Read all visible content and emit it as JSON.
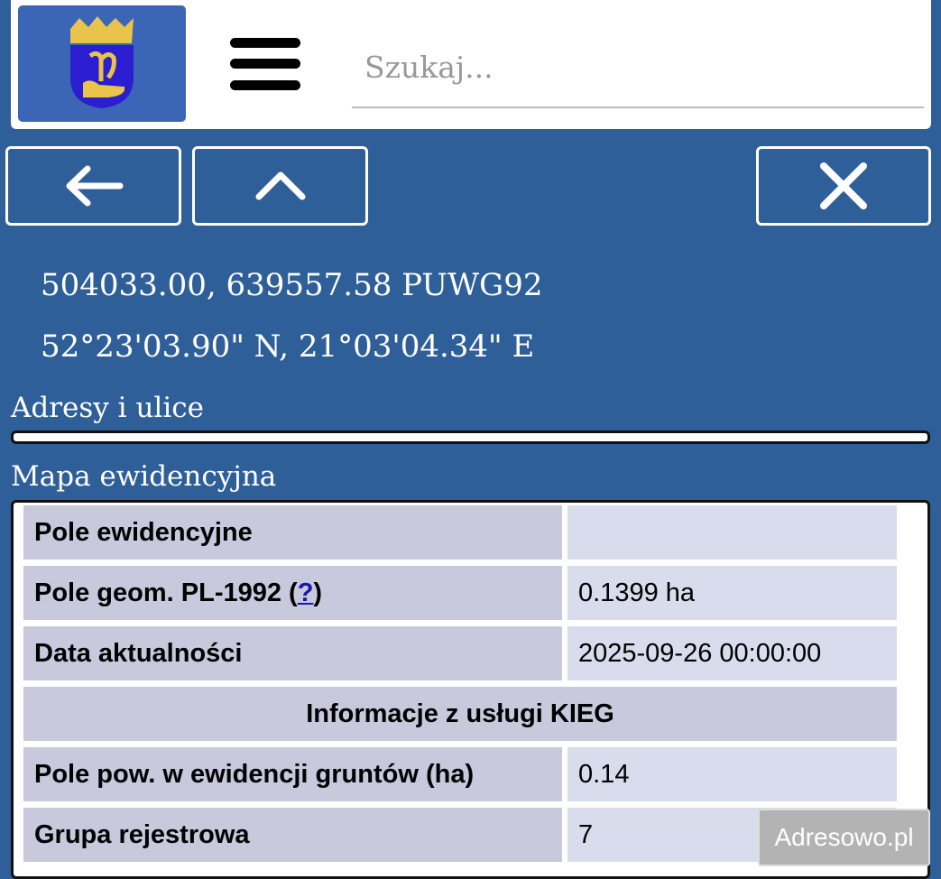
{
  "header": {
    "logo": "Herb",
    "search_placeholder": "Szukaj..."
  },
  "nav": {
    "back_icon": "arrow-left-icon",
    "up_icon": "chevron-up-icon",
    "close_icon": "close-icon"
  },
  "coords": {
    "puwg": "504033.00, 639557.58 PUWG92",
    "wgs": "52°23'03.90\" N, 21°03'04.34\" E"
  },
  "sections": {
    "addresses": "Adresy i ulice",
    "map": "Mapa ewidencyjna"
  },
  "table": {
    "rows": [
      {
        "label": "Pole ewidencyjne",
        "value": ""
      },
      {
        "label": "Pole geom. PL-1992 (",
        "link": "?",
        "label_end": ")",
        "value": "0.1399 ha"
      },
      {
        "label": "Data aktualności",
        "value": "2025-09-26 00:00:00"
      }
    ],
    "kieg_header": "Informacje z usługi KIEG",
    "kieg_rows": [
      {
        "label": "Pole pow. w ewidencji gruntów (ha)",
        "value": "0.14"
      },
      {
        "label": "Grupa rejestrowa",
        "value": "7"
      }
    ]
  },
  "watermark": "Adresowo.pl"
}
